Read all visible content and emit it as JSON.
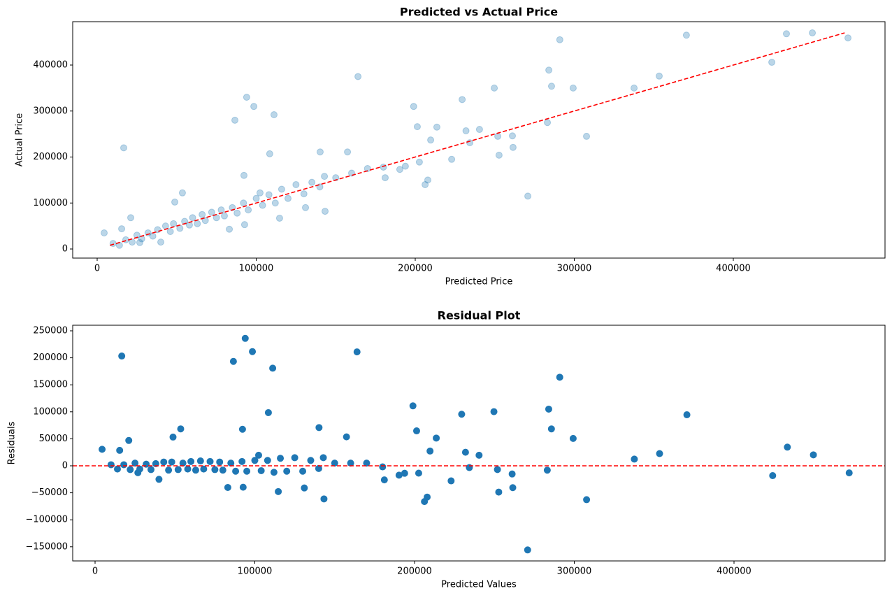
{
  "chart_data": [
    {
      "type": "scatter",
      "title": "Predicted vs Actual Price",
      "xlabel": "Predicted Price",
      "ylabel": "Actual Price",
      "color": "#1f77b4",
      "alpha": 0.3,
      "x": [
        4400,
        16700,
        86600,
        94000,
        98500,
        111200,
        92300,
        108500,
        164000,
        140200,
        157400,
        199000,
        201300,
        213600,
        229500,
        231900,
        249700,
        234300,
        240400,
        251900,
        252700,
        261100,
        261500,
        270800,
        209700,
        202600,
        206200,
        207900,
        222900,
        181100,
        190300,
        193800,
        284000,
        285700,
        290900,
        299300,
        283100,
        307700,
        337600,
        353400,
        370500,
        424200,
        433400,
        449700,
        472100,
        142900,
        143300,
        114700,
        131000,
        102400,
        53600,
        48800,
        21100,
        26800,
        15400,
        92700,
        83100,
        10000,
        14000,
        18000,
        22000,
        25000,
        28000,
        32000,
        35000,
        38000,
        40000,
        43000,
        46000,
        48000,
        52000,
        55000,
        58000,
        60000,
        63000,
        66000,
        68000,
        72000,
        75000,
        78000,
        80000,
        85000,
        88000,
        92000,
        95000,
        100000,
        104000,
        108000,
        112000,
        116000,
        120000,
        125000,
        130000,
        135000,
        140000,
        150000,
        160000,
        170000,
        180000
      ],
      "values": [
        35000,
        220000,
        280000,
        330000,
        310000,
        292000,
        160000,
        207000,
        375000,
        211000,
        211000,
        310000,
        266000,
        265000,
        325000,
        257000,
        350000,
        231000,
        260000,
        245000,
        204000,
        246000,
        221000,
        115000,
        237000,
        189000,
        140000,
        150000,
        195000,
        155000,
        173000,
        180000,
        389000,
        354000,
        455000,
        350000,
        275000,
        245000,
        350000,
        376000,
        465000,
        406000,
        468000,
        470000,
        459000,
        158000,
        82000,
        67000,
        90000,
        122000,
        122000,
        102000,
        68000,
        14000,
        44000,
        53000,
        43000,
        12000,
        8000,
        20000,
        15000,
        30000,
        22000,
        35000,
        28000,
        42000,
        15000,
        50000,
        38000,
        55000,
        45000,
        60000,
        52000,
        68000,
        55000,
        75000,
        62000,
        80000,
        68000,
        85000,
        72000,
        90000,
        78000,
        100000,
        85000,
        110000,
        95000,
        118000,
        100000,
        130000,
        110000,
        140000,
        120000,
        145000,
        135000,
        155000,
        165000,
        175000,
        178000
      ],
      "reference_line": {
        "x": [
          8000,
          470000
        ],
        "y": [
          8000,
          470000
        ],
        "color": "#ff0000"
      },
      "xlim": [
        -15385,
        495385
      ],
      "ylim": [
        -19772,
        494300
      ],
      "xticks": [
        0,
        100000,
        200000,
        300000,
        400000
      ],
      "yticks": [
        0,
        100000,
        200000,
        300000,
        400000
      ]
    },
    {
      "type": "scatter",
      "title": "Residual Plot",
      "xlabel": "Predicted Values",
      "ylabel": "Residuals",
      "color": "#1f77b4",
      "alpha": 1,
      "x": [
        4400,
        16700,
        86600,
        94000,
        98500,
        111200,
        92300,
        108500,
        164000,
        140200,
        157400,
        199000,
        201300,
        213600,
        229500,
        231900,
        249700,
        234300,
        240400,
        251900,
        252700,
        261100,
        261500,
        270800,
        209700,
        202600,
        206200,
        207900,
        222900,
        181100,
        190300,
        193800,
        284000,
        285700,
        290900,
        299300,
        283100,
        307700,
        337600,
        353400,
        370500,
        424200,
        433400,
        449700,
        472100,
        142900,
        143300,
        114700,
        131000,
        102400,
        53600,
        48800,
        21100,
        26800,
        15400,
        92700,
        83100,
        10000,
        14000,
        18000,
        22000,
        25000,
        28000,
        32000,
        35000,
        38000,
        40000,
        43000,
        46000,
        48000,
        52000,
        55000,
        58000,
        60000,
        63000,
        66000,
        68000,
        72000,
        75000,
        78000,
        80000,
        85000,
        88000,
        92000,
        95000,
        100000,
        104000,
        108000,
        112000,
        116000,
        120000,
        125000,
        130000,
        135000,
        140000,
        150000,
        160000,
        170000,
        180000
      ],
      "values": [
        30600,
        203300,
        193400,
        236000,
        211500,
        180800,
        67700,
        98500,
        211000,
        70800,
        53600,
        111000,
        64700,
        51400,
        95500,
        25100,
        100300,
        -3300,
        19600,
        -6900,
        -48700,
        -15100,
        -40500,
        -155800,
        27300,
        -13600,
        -66200,
        -57900,
        -27900,
        -26100,
        -17300,
        -13800,
        105000,
        68300,
        164100,
        50700,
        -8100,
        -62700,
        12400,
        22600,
        94500,
        -18200,
        34600,
        20300,
        -13100,
        15100,
        -61300,
        -47700,
        -41000,
        19600,
        68400,
        53200,
        46900,
        -12800,
        28600,
        -39700,
        -40100,
        2000,
        -6000,
        2000,
        -7000,
        5000,
        -6000,
        3000,
        -7000,
        4000,
        -25000,
        7000,
        -8000,
        7000,
        -7000,
        5000,
        -6000,
        8000,
        -8000,
        9000,
        -6000,
        8000,
        -7000,
        7000,
        -8000,
        5000,
        -10000,
        8000,
        -10000,
        10000,
        -9000,
        10000,
        -12000,
        14000,
        -10000,
        15000,
        -10000,
        10000,
        -5000,
        5000,
        5000,
        5000,
        -2000
      ],
      "hline": 0,
      "hline_color": "#ff0000",
      "xlim": [
        -14004,
        494530
      ],
      "ylim": [
        -176166,
        260363
      ],
      "xticks": [
        0,
        100000,
        200000,
        300000,
        400000
      ],
      "yticks": [
        {
          "value": -150000,
          "label": "−150000"
        },
        {
          "value": -100000,
          "label": "−100000"
        },
        {
          "value": -50000,
          "label": "−50000"
        },
        0,
        50000,
        100000,
        150000,
        200000,
        250000
      ]
    }
  ]
}
